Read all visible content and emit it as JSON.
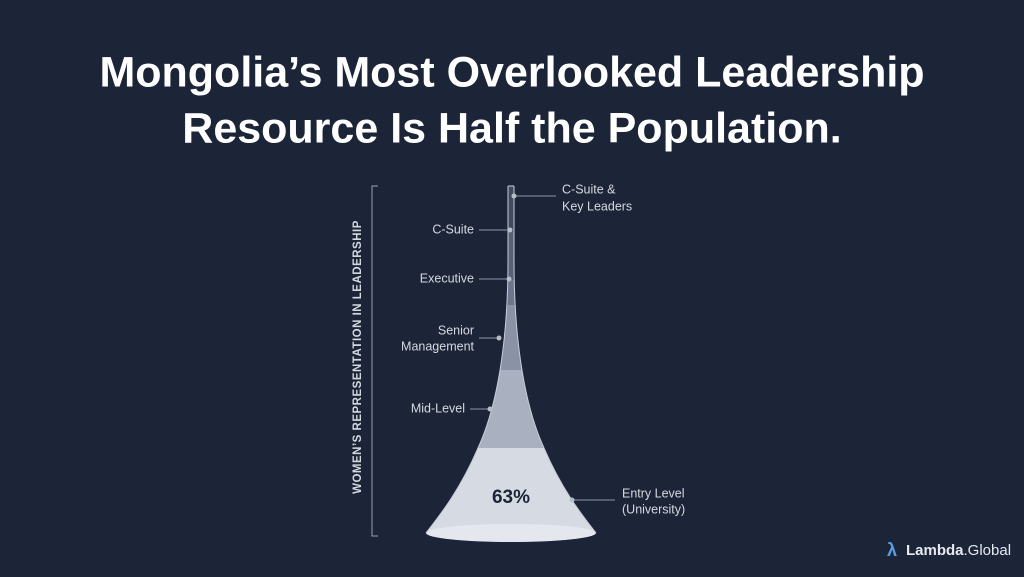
{
  "title": [
    "Mongolia’s Most Overlooked Leadership",
    "Resource Is Half the Population."
  ],
  "axis_label": "WOMEN’S REPRESENTATION IN LEADERSHIP",
  "levels": [
    {
      "label": [
        "C-Suite &",
        "Key Leaders"
      ]
    },
    {
      "label": [
        "C-Suite"
      ]
    },
    {
      "label": [
        "Executive"
      ]
    },
    {
      "label": [
        "Senior",
        "Management"
      ]
    },
    {
      "label": [
        "Mid-Level"
      ]
    },
    {
      "label": [
        "Entry Level",
        "(University)"
      ],
      "value_label": "63%"
    }
  ],
  "brand": {
    "symbol": "λ",
    "name": "Lambda",
    "suffix": ".Global"
  }
}
